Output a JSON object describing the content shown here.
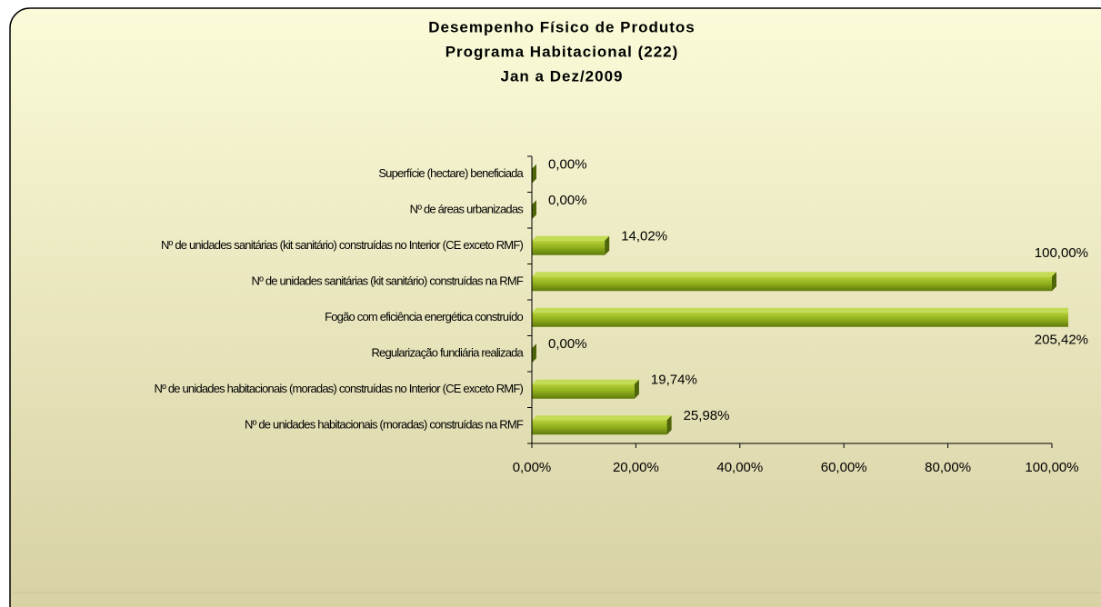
{
  "chart_data": {
    "type": "bar",
    "title": [
      "Desempenho Físico de Produtos",
      "Programa Habitacional (222)",
      "Jan a Dez/2009"
    ],
    "categories": [
      "Superfície (hectare) beneficiada",
      "Nº de áreas urbanizadas",
      "Nº de unidades sanitárias (kit sanitário) construídas no Interior (CE exceto RMF)",
      "Nº de unidades sanitárias (kit sanitário) construídas na RMF",
      "Fogão com eficiência energética construído",
      "Regularização fundiária realizada",
      "Nº de unidades habitacionais (moradas) construídas no Interior (CE exceto RMF)",
      "Nº de unidades habitacionais (moradas) construídas na RMF"
    ],
    "values": [
      0,
      0,
      14.02,
      100,
      205.42,
      0,
      19.74,
      25.98
    ],
    "value_labels": [
      "0,00%",
      "0,00%",
      "14,02%",
      "100,00%",
      "205,42%",
      "0,00%",
      "19,74%",
      "25,98%"
    ],
    "color": "#8fae1b",
    "xlim": [
      0,
      100
    ],
    "xticks": [
      {
        "value": 0,
        "label": "0,00%"
      },
      {
        "value": 20,
        "label": "20,00%"
      },
      {
        "value": 40,
        "label": "40,00%"
      },
      {
        "value": 60,
        "label": "60,00%"
      },
      {
        "value": 80,
        "label": "80,00%"
      },
      {
        "value": 100,
        "label": "100,00%"
      }
    ],
    "grid": false
  }
}
